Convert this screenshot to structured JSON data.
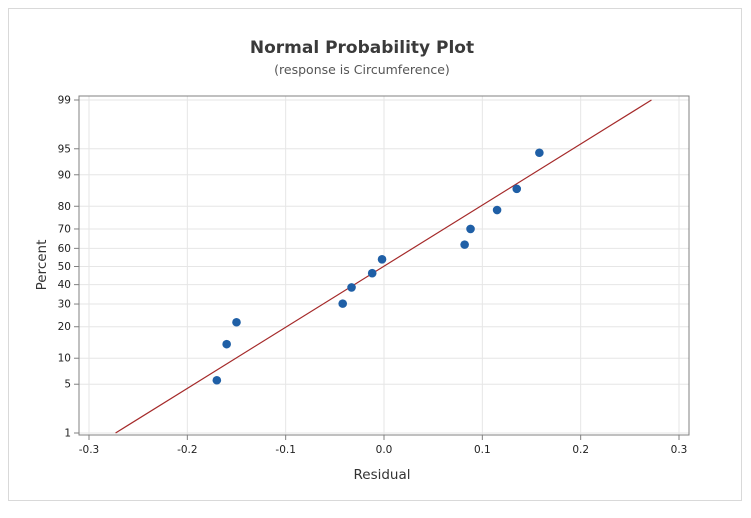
{
  "chart_data": {
    "type": "scatter",
    "title": "Normal Probability Plot",
    "subtitle": "(response is Circumference)",
    "xlabel": "Residual",
    "ylabel": "Percent",
    "xlim": [
      -0.3,
      0.3
    ],
    "x_ticks": [
      -0.3,
      -0.2,
      -0.1,
      0.0,
      0.1,
      0.2,
      0.3
    ],
    "x_tick_labels": [
      "-0.3",
      "-0.2",
      "-0.1",
      "0.0",
      "0.1",
      "0.2",
      "0.3"
    ],
    "y_scale": "normal-probability",
    "y_ticks": [
      1,
      5,
      10,
      20,
      30,
      40,
      50,
      60,
      70,
      80,
      90,
      95,
      99
    ],
    "y_tick_labels": [
      "1",
      "5",
      "10",
      "20",
      "30",
      "40",
      "50",
      "60",
      "70",
      "80",
      "90",
      "95",
      "99"
    ],
    "grid": true,
    "points": [
      {
        "x": -0.17,
        "y": 5.6
      },
      {
        "x": -0.16,
        "y": 13.9
      },
      {
        "x": -0.15,
        "y": 21.8
      },
      {
        "x": -0.042,
        "y": 30.2
      },
      {
        "x": -0.033,
        "y": 38.5
      },
      {
        "x": -0.012,
        "y": 46.3
      },
      {
        "x": -0.002,
        "y": 54.0
      },
      {
        "x": 0.082,
        "y": 62.0
      },
      {
        "x": 0.088,
        "y": 70.0
      },
      {
        "x": 0.115,
        "y": 78.5
      },
      {
        "x": 0.135,
        "y": 86.1
      },
      {
        "x": 0.158,
        "y": 94.4
      }
    ],
    "fit_line": [
      {
        "x": -0.273,
        "y": 1
      },
      {
        "x": 0.272,
        "y": 99
      }
    ],
    "colors": {
      "points": "#1f5fa6",
      "fit_line": "#a52a2a",
      "grid": "#e6e6e6",
      "axes": "#808080"
    }
  }
}
